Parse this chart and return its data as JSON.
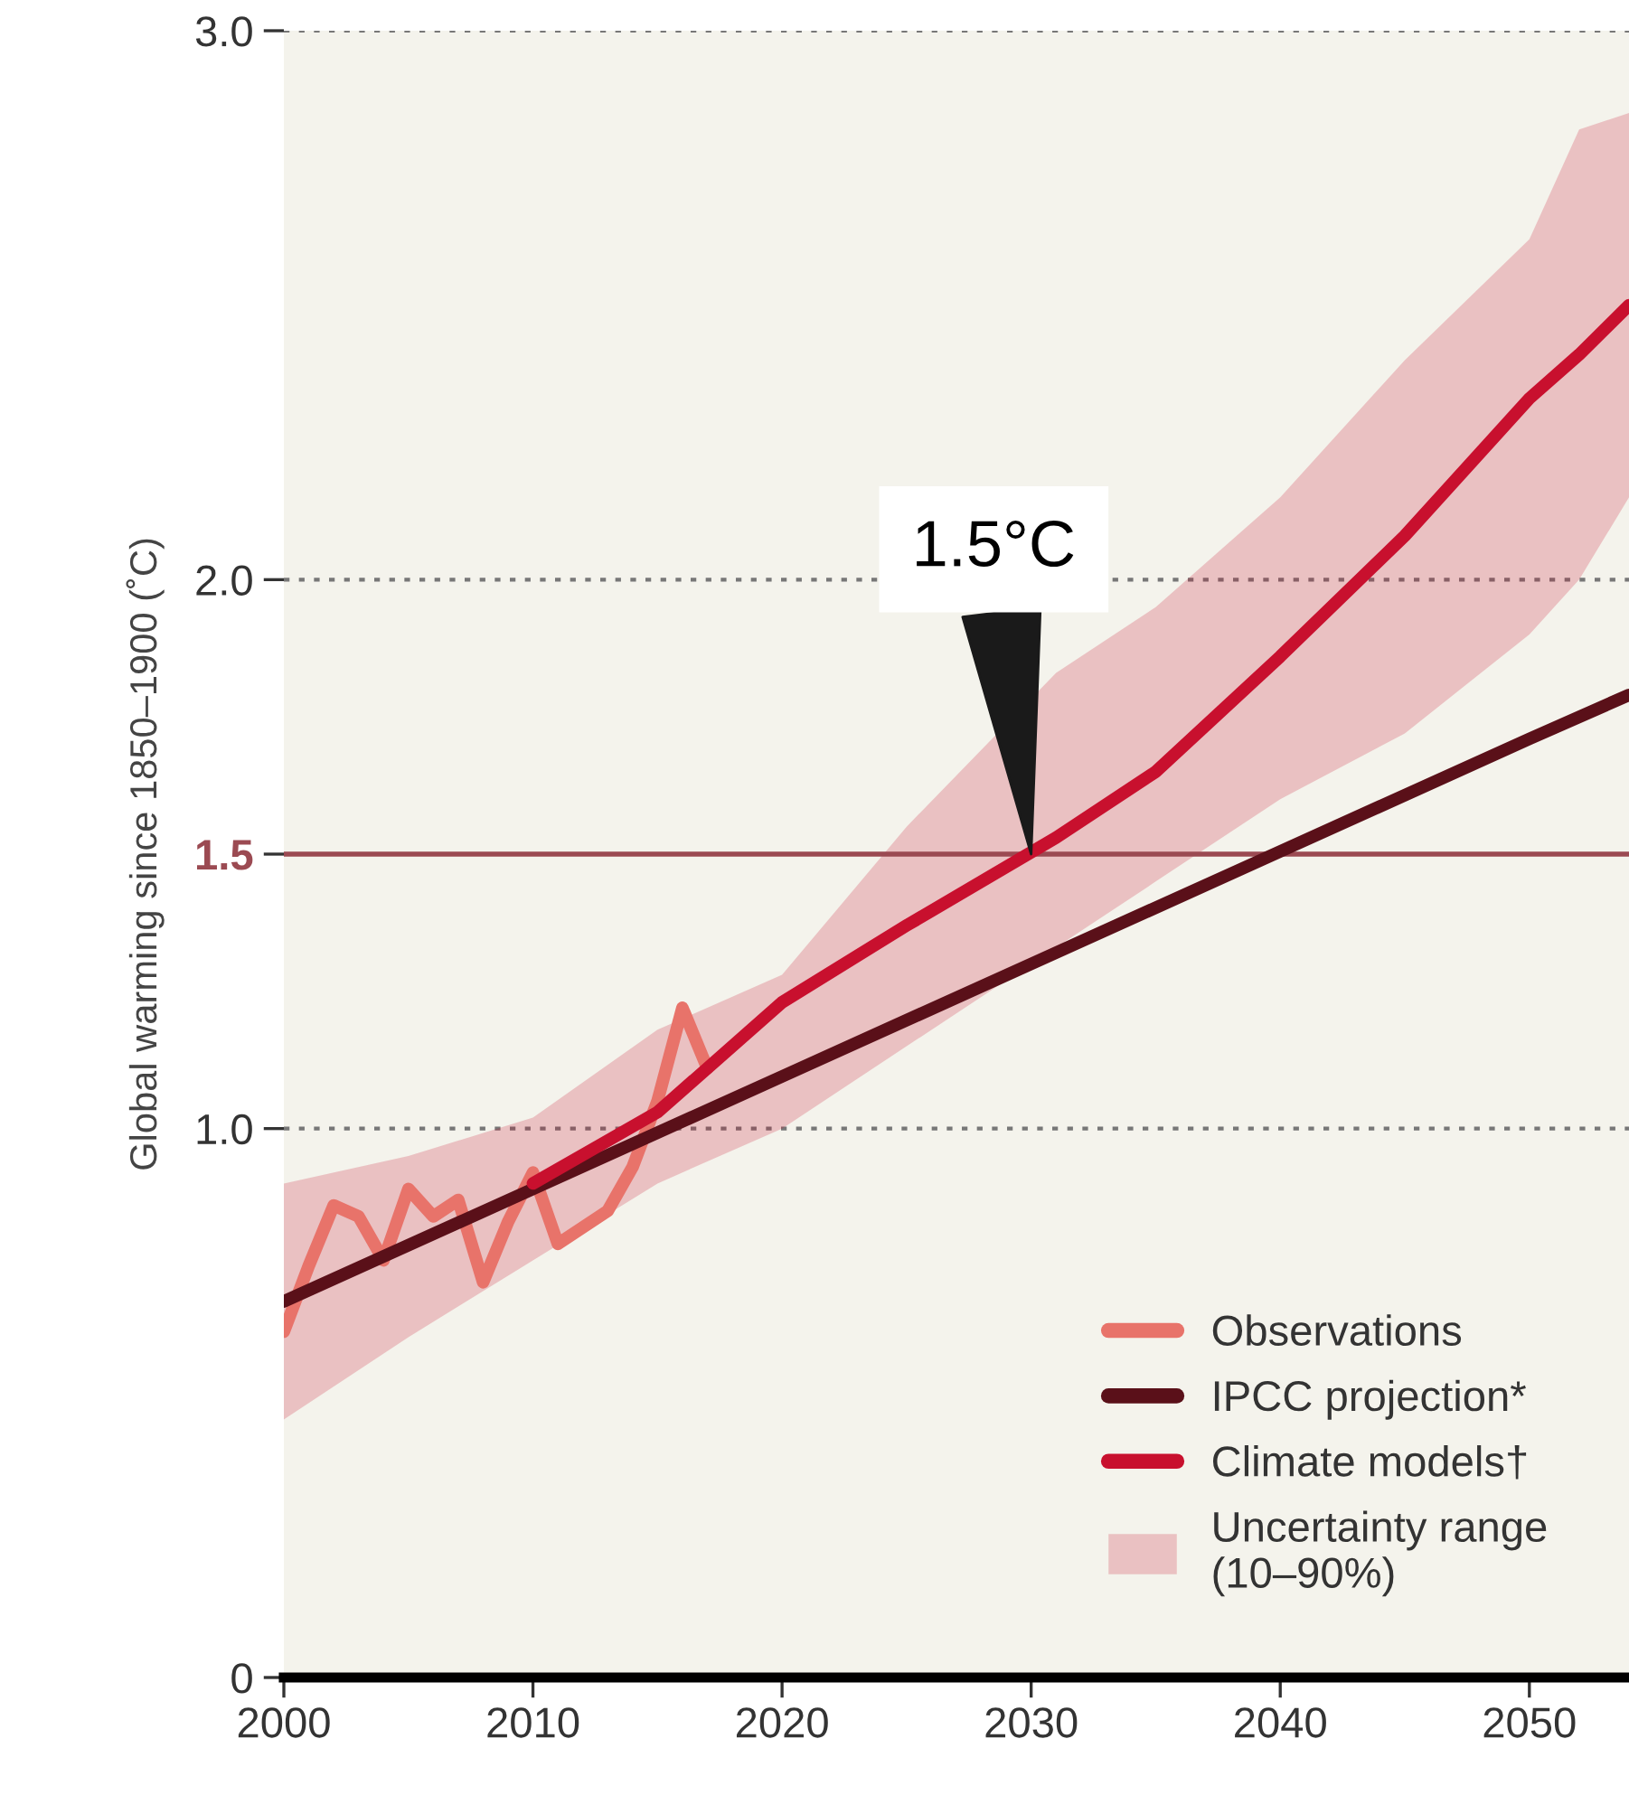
{
  "chart_data": {
    "type": "line",
    "ylabel": "Global warming since 1850–1900 (˚C)",
    "xlim": [
      2000,
      2054
    ],
    "xticks": [
      2000,
      2010,
      2020,
      2030,
      2040,
      2050
    ],
    "ylim": [
      0,
      3.0
    ],
    "yticks": [
      0,
      {
        "value": 1.0,
        "label": "1.0"
      },
      {
        "value": 1.5,
        "label": "1.5"
      },
      {
        "value": 2.0,
        "label": "2.0"
      },
      {
        "value": 3.0,
        "label": "3.0"
      }
    ],
    "grid": "y",
    "legend": "bottom right",
    "marker": "none",
    "line_style": "solid",
    "ref_lines": [
      {
        "axis": "y",
        "value": 1.5,
        "color": "#9b4a52"
      }
    ],
    "annotations": [
      {
        "text": "1.5°C",
        "x": 2030,
        "y": 1.5
      },
      "Uncertainty range\n(10–90%)"
    ],
    "series": [
      {
        "name": "Observations",
        "color": "#e8736a",
        "x": [
          2000,
          2001,
          2002,
          2003,
          2004,
          2005,
          2006,
          2007,
          2008,
          2009,
          2010,
          2011,
          2012,
          2013,
          2014,
          2015,
          2016,
          2017
        ],
        "values": [
          0.63,
          0.75,
          0.86,
          0.84,
          0.76,
          0.89,
          0.84,
          0.87,
          0.72,
          0.83,
          0.92,
          0.79,
          0.82,
          0.85,
          0.93,
          1.05,
          1.22,
          1.11
        ]
      },
      {
        "name": "IPCC projection*",
        "color": "#5a1019",
        "x": [
          2000,
          2010,
          2020,
          2030,
          2040,
          2050,
          2054
        ],
        "values": [
          0.685,
          0.89,
          1.095,
          1.3,
          1.505,
          1.71,
          1.79
        ]
      },
      {
        "name": "Climate models†",
        "color": "#c8102e",
        "x": [
          2000,
          2005,
          2010,
          2015,
          2020,
          2025,
          2031,
          2035,
          2040,
          2045,
          2050,
          2052,
          2054
        ],
        "values": [
          null,
          null,
          0.9,
          1.03,
          1.23,
          1.37,
          1.53,
          1.65,
          1.86,
          2.08,
          2.33,
          2.41,
          2.5
        ],
        "lower": [
          0.47,
          0.62,
          0.76,
          0.9,
          1.0,
          1.15,
          1.33,
          1.45,
          1.6,
          1.72,
          1.9,
          2.0,
          2.15
        ],
        "upper": [
          0.9,
          0.95,
          1.02,
          1.18,
          1.28,
          1.55,
          1.83,
          1.95,
          2.15,
          2.4,
          2.62,
          2.82,
          2.85
        ]
      }
    ]
  }
}
